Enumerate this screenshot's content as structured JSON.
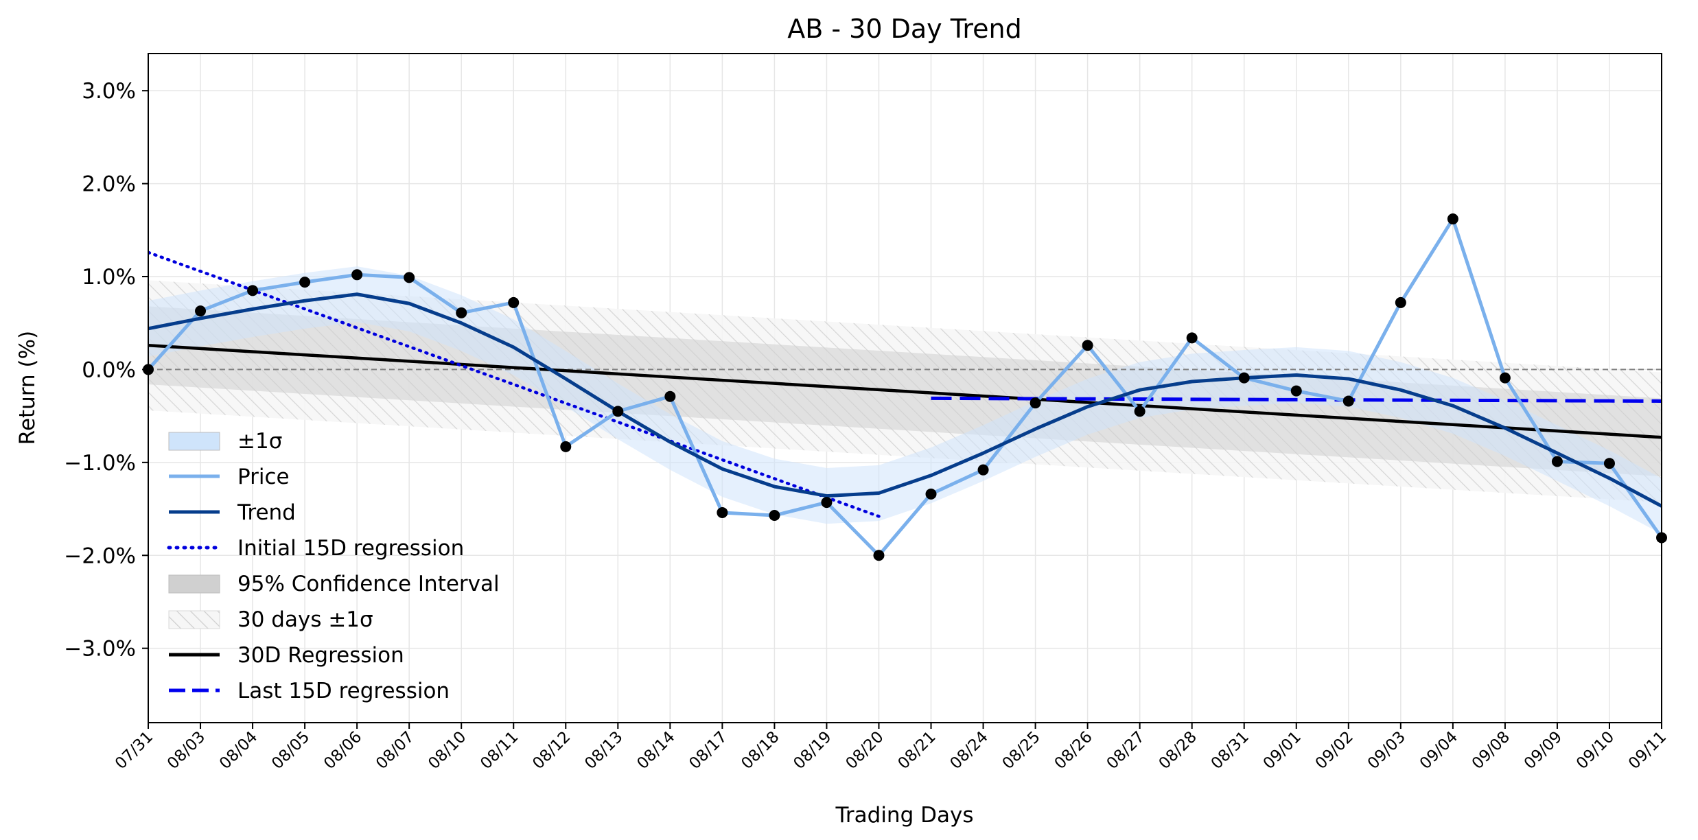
{
  "chart_data": {
    "type": "line",
    "title": "AB - 30 Day Trend",
    "xlabel": "Trading Days",
    "ylabel": "Return (%)",
    "ylim": [
      -3.8,
      3.4
    ],
    "yticks": [
      -3.0,
      -2.0,
      -1.0,
      0.0,
      1.0,
      2.0,
      3.0
    ],
    "ytick_labels": [
      "−3.0%",
      "−2.0%",
      "−1.0%",
      "0.0%",
      "1.0%",
      "2.0%",
      "3.0%"
    ],
    "grid": true,
    "legend_position": "lower-left",
    "categories": [
      "07/31",
      "08/03",
      "08/04",
      "08/05",
      "08/06",
      "08/07",
      "08/10",
      "08/11",
      "08/12",
      "08/13",
      "08/14",
      "08/17",
      "08/18",
      "08/19",
      "08/20",
      "08/21",
      "08/24",
      "08/25",
      "08/26",
      "08/27",
      "08/28",
      "08/31",
      "09/01",
      "09/02",
      "09/03",
      "09/04",
      "09/08",
      "09/09",
      "09/10",
      "09/11"
    ],
    "series": [
      {
        "name": "Price",
        "color": "#7ab0ec",
        "values": [
          0.0,
          0.63,
          0.85,
          0.94,
          1.02,
          0.99,
          0.61,
          0.72,
          -0.83,
          -0.45,
          -0.29,
          -1.54,
          -1.57,
          -1.43,
          -2.0,
          -1.34,
          -1.08,
          -0.36,
          0.26,
          -0.45,
          0.34,
          -0.09,
          -0.23,
          -0.34,
          0.72,
          1.62,
          -0.09,
          -0.99,
          -1.01,
          -1.81
        ]
      },
      {
        "name": "Trend",
        "color": "#063d8c",
        "values": [
          0.44,
          0.55,
          0.65,
          0.74,
          0.81,
          0.71,
          0.5,
          0.24,
          -0.1,
          -0.45,
          -0.78,
          -1.07,
          -1.26,
          -1.36,
          -1.33,
          -1.14,
          -0.9,
          -0.64,
          -0.4,
          -0.22,
          -0.13,
          -0.09,
          -0.06,
          -0.1,
          -0.22,
          -0.39,
          -0.63,
          -0.9,
          -1.17,
          -1.47
        ]
      },
      {
        "name": "Initial 15D regression",
        "color": "#0000dd",
        "x_range": [
          0,
          14
        ],
        "y_range": [
          1.26,
          -1.58
        ]
      },
      {
        "name": "30D Regression",
        "color": "#000000",
        "x_range": [
          0,
          29
        ],
        "y_range": [
          0.26,
          -0.73
        ]
      },
      {
        "name": "Last 15D regression",
        "color": "#0000ee",
        "x_range": [
          15,
          29
        ],
        "y_range": [
          -0.31,
          -0.34
        ]
      },
      {
        "name": "±1σ",
        "color": "#cfe4fb",
        "band_offset": 0.3
      },
      {
        "name": "95% Confidence Interval",
        "color": "#d0d0d0",
        "band_offset": 0.42
      },
      {
        "name": "30 days ±1σ",
        "color": "#e8e8e8",
        "band_offset": 0.7
      }
    ],
    "reference_line": {
      "y": 0.0,
      "color": "#808080"
    }
  }
}
